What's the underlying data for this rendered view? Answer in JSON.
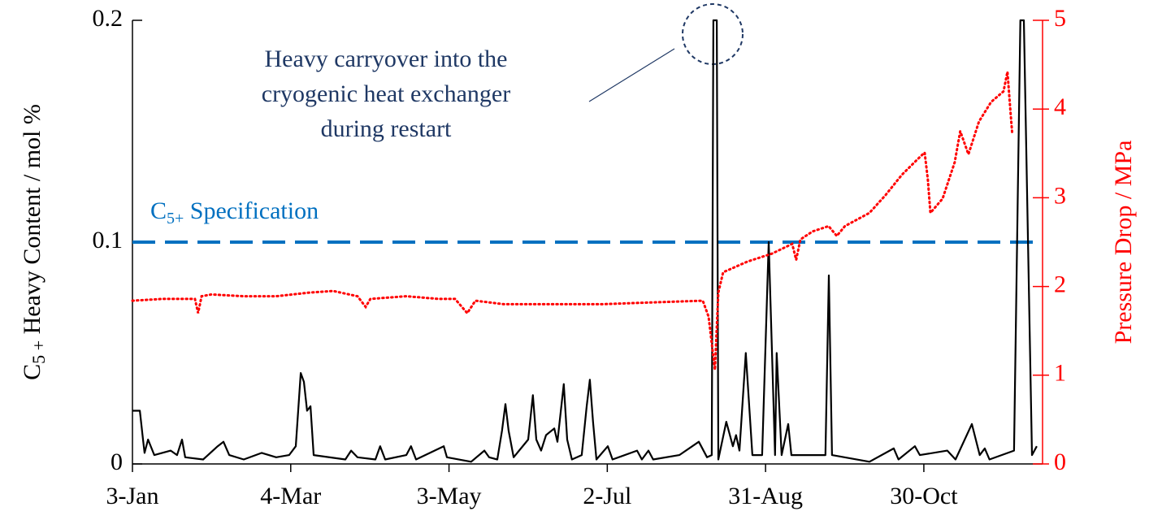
{
  "chart_data": {
    "type": "line",
    "ylabel": [
      "C",
      "5 +",
      " Heavy Content / mol %"
    ],
    "y2label": "Pressure Drop / MPa",
    "xlim": [
      3,
      348
    ],
    "xticks": [
      {
        "value": 3,
        "label": "3-Jan"
      },
      {
        "value": 63,
        "label": "4-Mar"
      },
      {
        "value": 123,
        "label": "3-May"
      },
      {
        "value": 183,
        "label": "2-Jul"
      },
      {
        "value": 243,
        "label": "31-Aug"
      },
      {
        "value": 303,
        "label": "30-Oct"
      }
    ],
    "ylim": [
      0,
      0.2
    ],
    "yticks": [
      0,
      0.1,
      0.2
    ],
    "y2lim": [
      0,
      5
    ],
    "y2ticks": [
      0,
      1,
      2,
      3,
      4,
      5
    ],
    "y2color": "#ff0000",
    "specification": {
      "value": 0.1,
      "label": [
        "C",
        "5+",
        " Specification"
      ],
      "color": "#0070c0"
    },
    "annotation": [
      "Heavy carryover into the",
      "cryogenic heat exchanger",
      "during restart"
    ],
    "annotation_color": "#1f3864",
    "series": [
      {
        "color": "#000000",
        "axis": "y",
        "style": "solid",
        "x": [
          3,
          5.8,
          7,
          7.6,
          8.9,
          11.3,
          17.5,
          19.9,
          21.8,
          23,
          29.8,
          35.3,
          37.5,
          39.7,
          45.2,
          52,
          57.5,
          62.4,
          64.9,
          66.8,
          68,
          69.2,
          70.5,
          71.7,
          83.7,
          85.9,
          88.3,
          95.1,
          96.9,
          98.8,
          106.8,
          108.6,
          110.5,
          121,
          122.2,
          131.4,
          136.4,
          138.2,
          141.3,
          143.1,
          144.4,
          145.6,
          147.5,
          153,
          154.8,
          156.1,
          157.9,
          159.8,
          162.9,
          164.1,
          166.5,
          167.8,
          169.6,
          173.3,
          175.2,
          176.4,
          177.6,
          178.9,
          183.2,
          185,
          194.3,
          196.1,
          198.6,
          200.4,
          210.3,
          217.7,
          220.8,
          222.6,
          223.2,
          224.5,
          225.1,
          228.1,
          230.6,
          231.8,
          233.1,
          235.5,
          238,
          241.7,
          244.2,
          246.6,
          247.2,
          249.1,
          251.6,
          252.8,
          260.8,
          265.7,
          267,
          268.2,
          282.4,
          291.6,
          293.4,
          299.6,
          301.5,
          311.9,
          315,
          321.2,
          324.2,
          326.1,
          327.9,
          337.2,
          339.6,
          340.9,
          344,
          345.8
        ],
        "values": [
          0.024,
          0.024,
          0.011,
          0.005,
          0.011,
          0.004,
          0.006,
          0.004,
          0.011,
          0.003,
          0.002,
          0.008,
          0.01,
          0.004,
          0.002,
          0.005,
          0.003,
          0.004,
          0.008,
          0.041,
          0.037,
          0.024,
          0.026,
          0.004,
          0.002,
          0.006,
          0.003,
          0.002,
          0.008,
          0.002,
          0.004,
          0.008,
          0.002,
          0.008,
          0.003,
          0.001,
          0.006,
          0.003,
          0.002,
          0.015,
          0.027,
          0.015,
          0.003,
          0.011,
          0.031,
          0.011,
          0.006,
          0.013,
          0.016,
          0.01,
          0.036,
          0.011,
          0.002,
          0.004,
          0.026,
          0.038,
          0.019,
          0.002,
          0.008,
          0.002,
          0.006,
          0.002,
          0.006,
          0.002,
          0.004,
          0.01,
          0.003,
          0.004,
          0.2,
          0.2,
          0.002,
          0.019,
          0.008,
          0.013,
          0.006,
          0.05,
          0.004,
          0.004,
          0.1,
          0.004,
          0.05,
          0.004,
          0.018,
          0.004,
          0.004,
          0.004,
          0.085,
          0.004,
          0.001,
          0.007,
          0.002,
          0.008,
          0.004,
          0.006,
          0.002,
          0.018,
          0.004,
          0.007,
          0.002,
          0.006,
          0.2,
          0.2,
          0.004,
          0.008
        ]
      },
      {
        "color": "#ff0000",
        "axis": "y2",
        "style": "dotted",
        "x": [
          3,
          14.4,
          26.7,
          27.9,
          29.2,
          32.9,
          45.2,
          57.5,
          69.8,
          79.1,
          88.3,
          91.4,
          93.2,
          106.8,
          119.1,
          125.3,
          129.9,
          133,
          143.8,
          162.3,
          180.7,
          199.2,
          219.2,
          221.4,
          223.8,
          225.1,
          226.9,
          236.1,
          245.4,
          253.1,
          254.6,
          256.2,
          260.8,
          266.9,
          270,
          273.1,
          282.4,
          288.5,
          294.7,
          300.8,
          303.3,
          304.5,
          305.5,
          310.1,
          314.7,
          316.8,
          319.9,
          323.9,
          328.5,
          333.2,
          334.7,
          335.9,
          336.5
        ],
        "values": [
          1.84,
          1.86,
          1.86,
          1.7,
          1.89,
          1.91,
          1.89,
          1.89,
          1.93,
          1.95,
          1.89,
          1.77,
          1.86,
          1.89,
          1.86,
          1.86,
          1.7,
          1.84,
          1.8,
          1.8,
          1.8,
          1.82,
          1.84,
          1.66,
          1.06,
          1.93,
          2.16,
          2.28,
          2.37,
          2.48,
          2.3,
          2.53,
          2.62,
          2.68,
          2.57,
          2.68,
          2.83,
          3.03,
          3.26,
          3.44,
          3.51,
          3.21,
          2.83,
          2.99,
          3.4,
          3.75,
          3.49,
          3.86,
          4.08,
          4.2,
          4.42,
          3.95,
          3.72
        ]
      }
    ]
  }
}
